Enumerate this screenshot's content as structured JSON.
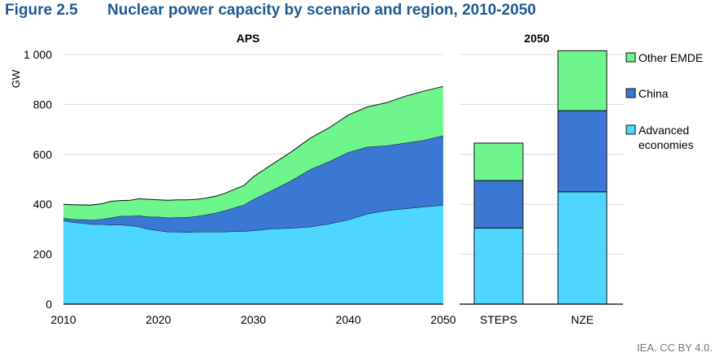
{
  "figure": {
    "number": "Figure 2.5",
    "title": "Nuclear power capacity by scenario and region, 2010-2050"
  },
  "credit": "IEA. CC BY 4.0.",
  "colors": {
    "advanced": "#4dd6ff",
    "china": "#3b78d4",
    "other": "#6ef58c",
    "title": "#1f5a94",
    "grid": "#d9d9d9"
  },
  "chart_data": [
    {
      "type": "area",
      "panel_title": "APS",
      "ylabel": "GW",
      "ylim": [
        0,
        1000
      ],
      "yticks": [
        0,
        200,
        400,
        600,
        800,
        1000
      ],
      "ytick_labels": [
        "0",
        "200",
        "400",
        "600",
        "800",
        "1 000"
      ],
      "xlim": [
        2010,
        2050
      ],
      "xticks": [
        2010,
        2020,
        2030,
        2040,
        2050
      ],
      "xtick_labels": [
        "2010",
        "2020",
        "2030",
        "2040",
        "2050"
      ],
      "grid": true,
      "x": [
        2010,
        2011,
        2012,
        2013,
        2014,
        2015,
        2016,
        2017,
        2018,
        2019,
        2020,
        2021,
        2022,
        2023,
        2024,
        2025,
        2026,
        2027,
        2028,
        2029,
        2030,
        2032,
        2034,
        2036,
        2038,
        2040,
        2042,
        2044,
        2046,
        2048,
        2050
      ],
      "series": [
        {
          "name": "Advanced economies",
          "color_key": "advanced",
          "values": [
            335,
            328,
            325,
            320,
            320,
            318,
            318,
            315,
            310,
            300,
            295,
            290,
            290,
            288,
            290,
            290,
            290,
            290,
            292,
            292,
            295,
            302,
            305,
            310,
            322,
            338,
            362,
            375,
            383,
            390,
            397
          ]
        },
        {
          "name": "China",
          "color_key": "china",
          "values": [
            10,
            12,
            14,
            17,
            20,
            28,
            35,
            38,
            45,
            50,
            55,
            56,
            58,
            60,
            62,
            68,
            75,
            85,
            95,
            105,
            125,
            155,
            190,
            230,
            250,
            270,
            268,
            260,
            263,
            267,
            278
          ]
        },
        {
          "name": "Other EMDE",
          "color_key": "other",
          "values": [
            55,
            58,
            58,
            60,
            62,
            66,
            62,
            63,
            67,
            70,
            68,
            70,
            70,
            70,
            68,
            67,
            67,
            69,
            73,
            78,
            90,
            104,
            115,
            125,
            135,
            150,
            160,
            172,
            187,
            197,
            197
          ]
        }
      ]
    },
    {
      "type": "bar",
      "stacked": true,
      "panel_title": "2050",
      "categories": [
        "STEPS",
        "NZE"
      ],
      "ylim": [
        0,
        1000
      ],
      "grid": true,
      "series": [
        {
          "name": "Advanced economies",
          "color_key": "advanced",
          "values": [
            305,
            450
          ]
        },
        {
          "name": "China",
          "color_key": "china",
          "values": [
            190,
            325
          ]
        },
        {
          "name": "Other EMDE",
          "color_key": "other",
          "values": [
            150,
            240
          ]
        }
      ]
    }
  ],
  "legend": {
    "placement": "right",
    "items": [
      {
        "lines": [
          "Other EMDE"
        ],
        "color_key": "other"
      },
      {
        "lines": [
          "China"
        ],
        "color_key": "china"
      },
      {
        "lines": [
          "Advanced",
          "economies"
        ],
        "color_key": "advanced"
      }
    ]
  }
}
